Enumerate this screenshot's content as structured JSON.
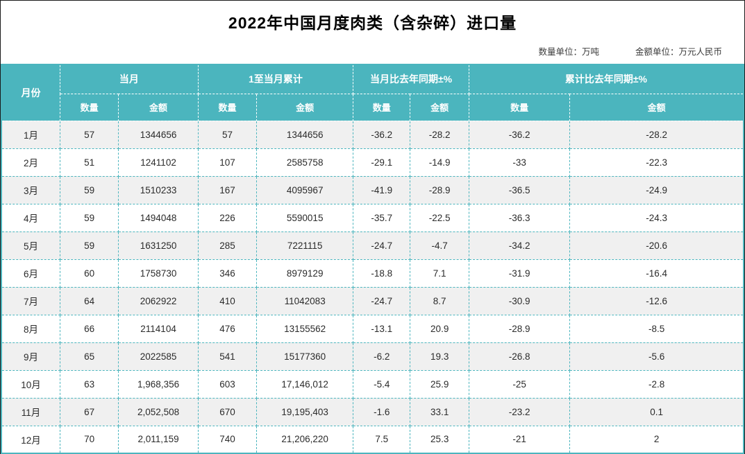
{
  "page": {
    "title": "2022年中国月度肉类（含杂碎）进口量",
    "unit_quantity_label": "数量单位：万吨",
    "unit_amount_label": "金额单位：万元人民币"
  },
  "colors": {
    "header_bg": "#4BB5BE",
    "header_text": "#FFFFFF",
    "row_alt_bg": "#F0F0F0",
    "row_bg": "#FFFFFF",
    "table_border": "#4BB5BE",
    "frame_border": "#1A1A1A",
    "body_text": "#2B2B2B"
  },
  "chart_data": {
    "type": "table",
    "title": "2022年中国月度肉类（含杂碎）进口量",
    "units": {
      "quantity": "万吨",
      "amount": "万元人民币"
    },
    "column_groups": [
      {
        "label": "月份",
        "colspan": 1
      },
      {
        "label": "当月",
        "colspan": 2
      },
      {
        "label": "1至当月累计",
        "colspan": 2
      },
      {
        "label": "当月比去年同期±%",
        "colspan": 2
      },
      {
        "label": "累计比去年同期±%",
        "colspan": 2
      }
    ],
    "sub_headers": [
      "数量",
      "金额",
      "数量",
      "金额",
      "数量",
      "金额",
      "数量",
      "金额"
    ],
    "rows": [
      {
        "month": "1月",
        "values": [
          "57",
          "1344656",
          "57",
          "1344656",
          "-36.2",
          "-28.2",
          "-36.2",
          "-28.2"
        ]
      },
      {
        "month": "2月",
        "values": [
          "51",
          "1241102",
          "107",
          "2585758",
          "-29.1",
          "-14.9",
          "-33",
          "-22.3"
        ]
      },
      {
        "month": "3月",
        "values": [
          "59",
          "1510233",
          "167",
          "4095967",
          "-41.9",
          "-28.9",
          "-36.5",
          "-24.9"
        ]
      },
      {
        "month": "4月",
        "values": [
          "59",
          "1494048",
          "226",
          "5590015",
          "-35.7",
          "-22.5",
          "-36.3",
          "-24.3"
        ]
      },
      {
        "month": "5月",
        "values": [
          "59",
          "1631250",
          "285",
          "7221115",
          "-24.7",
          "-4.7",
          "-34.2",
          "-20.6"
        ]
      },
      {
        "month": "6月",
        "values": [
          "60",
          "1758730",
          "346",
          "8979129",
          "-18.8",
          "7.1",
          "-31.9",
          "-16.4"
        ]
      },
      {
        "month": "7月",
        "values": [
          "64",
          "2062922",
          "410",
          "11042083",
          "-24.7",
          "8.7",
          "-30.9",
          "-12.6"
        ]
      },
      {
        "month": "8月",
        "values": [
          "66",
          "2114104",
          "476",
          "13155562",
          "-13.1",
          "20.9",
          "-28.9",
          "-8.5"
        ]
      },
      {
        "month": "9月",
        "values": [
          "65",
          "2022585",
          "541",
          "15177360",
          "-6.2",
          "19.3",
          "-26.8",
          "-5.6"
        ]
      },
      {
        "month": "10月",
        "values": [
          "63",
          "1,968,356",
          "603",
          "17,146,012",
          "-5.4",
          "25.9",
          "-25",
          "-2.8"
        ]
      },
      {
        "month": "11月",
        "values": [
          "67",
          "2,052,508",
          "670",
          "19,195,403",
          "-1.6",
          "33.1",
          "-23.2",
          "0.1"
        ]
      },
      {
        "month": "12月",
        "values": [
          "70",
          "2,011,159",
          "740",
          "21,206,220",
          "7.5",
          "25.3",
          "-21",
          "2"
        ]
      }
    ]
  }
}
